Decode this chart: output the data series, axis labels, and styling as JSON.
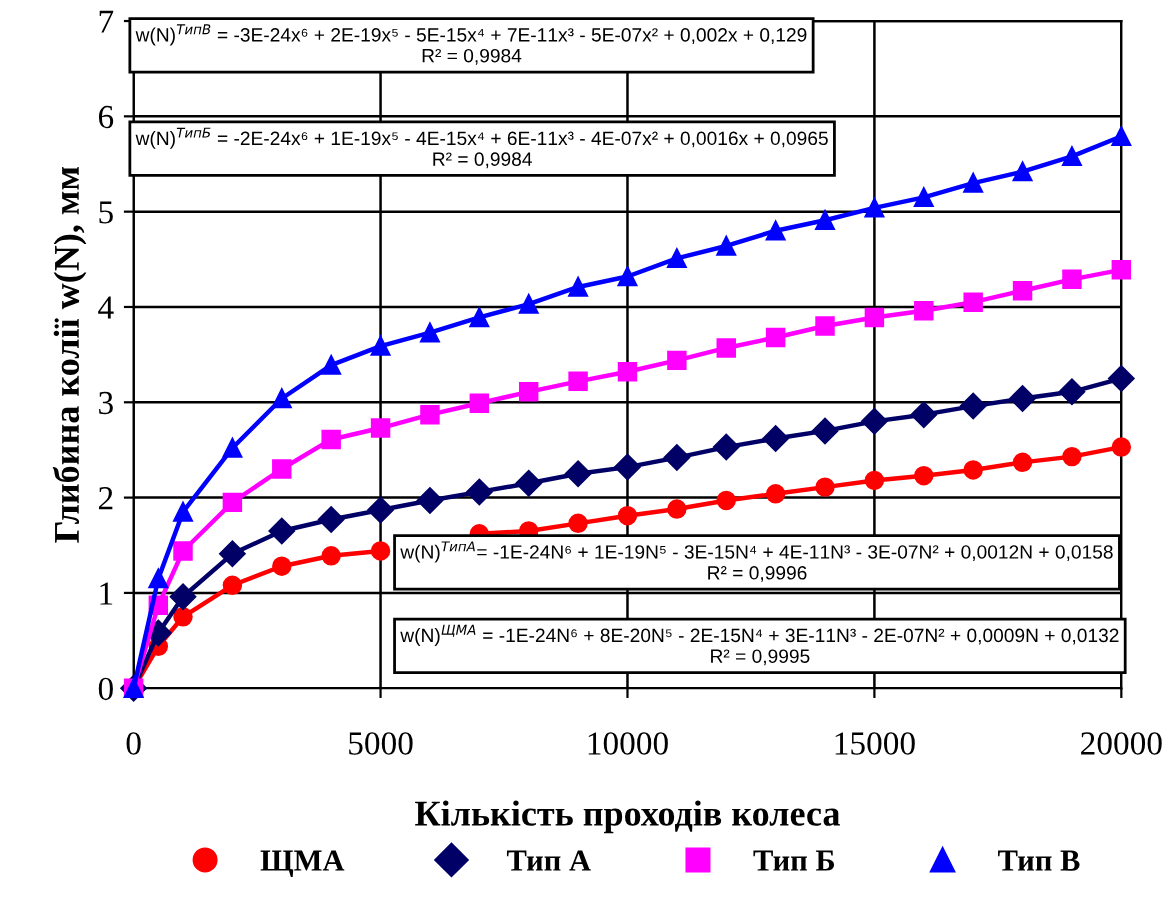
{
  "chart_data": {
    "type": "line",
    "xlabel": "Кількість проходів колеса",
    "ylabel": "Глибина колії w(N), мм",
    "x": [
      0,
      500,
      1000,
      2000,
      3000,
      4000,
      5000,
      6000,
      7000,
      8000,
      9000,
      10000,
      11000,
      12000,
      13000,
      14000,
      15000,
      16000,
      17000,
      18000,
      19000,
      20000
    ],
    "series": [
      {
        "name": "ЩМА",
        "color": "#ff0000",
        "marker": "circle",
        "values": [
          0,
          0.44,
          0.75,
          1.08,
          1.28,
          1.39,
          1.44,
          null,
          1.62,
          1.65,
          1.73,
          1.81,
          1.88,
          1.97,
          2.04,
          2.11,
          2.18,
          2.23,
          2.29,
          2.37,
          2.43,
          2.53
        ]
      },
      {
        "name": "Тип А",
        "color": "#000066",
        "marker": "diamond",
        "values": [
          0,
          0.58,
          0.96,
          1.41,
          1.65,
          1.77,
          1.87,
          1.97,
          2.06,
          2.15,
          2.25,
          2.32,
          2.42,
          2.53,
          2.62,
          2.7,
          2.8,
          2.87,
          2.96,
          3.04,
          3.11,
          3.25
        ]
      },
      {
        "name": "Тип Б",
        "color": "#ff00ff",
        "marker": "square",
        "values": [
          0,
          0.87,
          1.44,
          1.95,
          2.3,
          2.61,
          2.73,
          2.87,
          2.99,
          3.11,
          3.22,
          3.32,
          3.44,
          3.57,
          3.68,
          3.8,
          3.89,
          3.96,
          4.05,
          4.17,
          4.29,
          4.39
        ]
      },
      {
        "name": "Тип В",
        "color": "#0000ff",
        "marker": "triangle",
        "values": [
          0,
          1.15,
          1.85,
          2.52,
          3.04,
          3.39,
          3.59,
          3.73,
          3.89,
          4.03,
          4.21,
          4.32,
          4.51,
          4.64,
          4.8,
          4.91,
          5.04,
          5.15,
          5.3,
          5.42,
          5.58,
          5.79
        ]
      }
    ],
    "xlim": [
      0,
      20000
    ],
    "xticks": [
      0,
      5000,
      10000,
      15000,
      20000
    ],
    "ylim": [
      0,
      7
    ],
    "yticks": [
      0,
      1,
      2,
      3,
      4,
      5,
      6,
      7
    ],
    "grid": true,
    "legend": "bottom",
    "line_style": "solid",
    "annotations": [
      "w(N)$^{ТипВ}$ = -3E-24x⁶ + 2E-19x⁵ - 5E-15x⁴ + 7E-11x³ - 5E-07x² + 0,002x + 0,129\nR² = 0,9984",
      "w(N)$^{ТипБ}$ = -2E-24x⁶ + 1E-19x⁵ - 4E-15x⁴ + 6E-11x³ - 4E-07x² + 0,0016x + 0,0965\nR² = 0,9984",
      "w(N)$^{ТипА}$= -1E-24N⁶ + 1E-19N⁵ - 3E-15N⁴ + 4E-11N³ - 3E-07N² + 0,0012N + 0,0158\nR² = 0,9996",
      "w(N)$^{ЩМА}$ = -1E-24N⁶ + 8E-20N⁵ - 2E-15N⁴ + 3E-11N³ - 2E-07N² + 0,0009N + 0,0132\nR² = 0,9995"
    ]
  }
}
